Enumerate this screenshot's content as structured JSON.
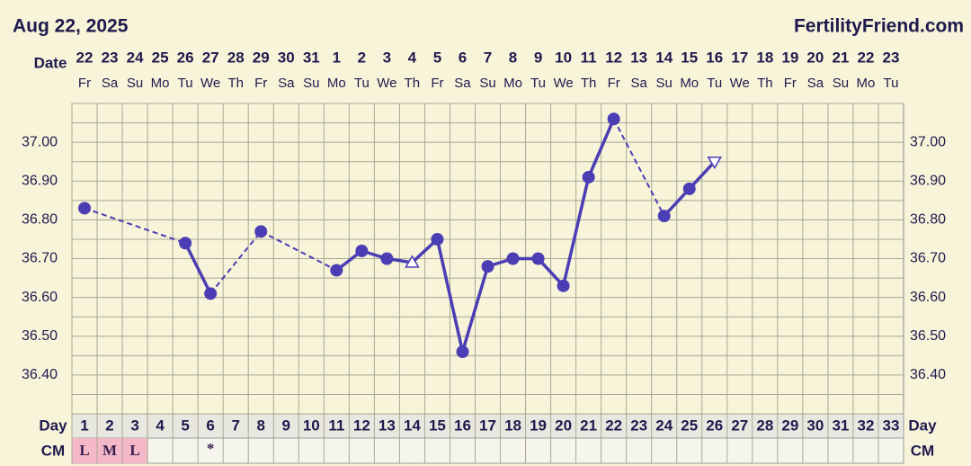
{
  "chart_data": {
    "type": "line",
    "title": "Aug 22, 2025",
    "site": "FertilityFriend.com",
    "date_label": "Date",
    "day_label": "Day",
    "cm_label": "CM",
    "dates": [
      "22",
      "23",
      "24",
      "25",
      "26",
      "27",
      "28",
      "29",
      "30",
      "31",
      "1",
      "2",
      "3",
      "4",
      "5",
      "6",
      "7",
      "8",
      "9",
      "10",
      "11",
      "12",
      "13",
      "14",
      "15",
      "16",
      "17",
      "18",
      "19",
      "20",
      "21",
      "22",
      "23"
    ],
    "weekdays": [
      "Fr",
      "Sa",
      "Su",
      "Mo",
      "Tu",
      "We",
      "Th",
      "Fr",
      "Sa",
      "Su",
      "Mo",
      "Tu",
      "We",
      "Th",
      "Fr",
      "Sa",
      "Su",
      "Mo",
      "Tu",
      "We",
      "Th",
      "Fr",
      "Sa",
      "Su",
      "Mo",
      "Tu",
      "We",
      "Th",
      "Fr",
      "Sa",
      "Su",
      "Mo",
      "Tu"
    ],
    "categories": [
      1,
      2,
      3,
      4,
      5,
      6,
      7,
      8,
      9,
      10,
      11,
      12,
      13,
      14,
      15,
      16,
      17,
      18,
      19,
      20,
      21,
      22,
      23,
      24,
      25,
      26,
      27,
      28,
      29,
      30,
      31,
      32,
      33
    ],
    "values": [
      36.83,
      null,
      null,
      null,
      36.74,
      36.61,
      null,
      36.77,
      null,
      null,
      36.67,
      36.72,
      36.7,
      36.69,
      36.75,
      36.46,
      36.68,
      36.7,
      36.7,
      36.63,
      36.91,
      37.06,
      null,
      36.81,
      36.88,
      36.95,
      null,
      null,
      null,
      null,
      null,
      null,
      null
    ],
    "markers": [
      "circle",
      null,
      null,
      null,
      "circle",
      "circle",
      null,
      "circle",
      null,
      null,
      "circle",
      "circle",
      "circle",
      "triangle-up",
      "circle",
      "circle",
      "circle",
      "circle",
      "circle",
      "circle",
      "circle",
      "circle",
      null,
      "circle",
      "circle",
      "triangle-down",
      null,
      null,
      null,
      null,
      null,
      null,
      null
    ],
    "color": "#4b3db4",
    "cm": [
      "L",
      "M",
      "L",
      null,
      null,
      "*",
      null,
      null,
      null,
      null,
      null,
      null,
      null,
      null,
      null,
      null,
      null,
      null,
      null,
      null,
      null,
      null,
      null,
      null,
      null,
      null,
      null,
      null,
      null,
      null,
      null,
      null,
      null
    ],
    "cm_color": "#f4b8c8",
    "ylim": [
      36.3,
      37.1
    ],
    "yticks": [
      {
        "value": 36.4,
        "label": "36.40"
      },
      {
        "value": 36.5,
        "label": "36.50"
      },
      {
        "value": 36.6,
        "label": "36.60"
      },
      {
        "value": 36.7,
        "label": "36.70"
      },
      {
        "value": 36.8,
        "label": "36.80"
      },
      {
        "value": 36.9,
        "label": "36.90"
      },
      {
        "value": 37.0,
        "label": "37.00"
      }
    ],
    "grid_lines": [
      36.3,
      36.35,
      36.4,
      36.45,
      36.5,
      36.55,
      36.6,
      36.65,
      36.7,
      36.75,
      36.8,
      36.85,
      36.9,
      36.95,
      37.0,
      37.05,
      37.1
    ],
    "grid": true
  }
}
